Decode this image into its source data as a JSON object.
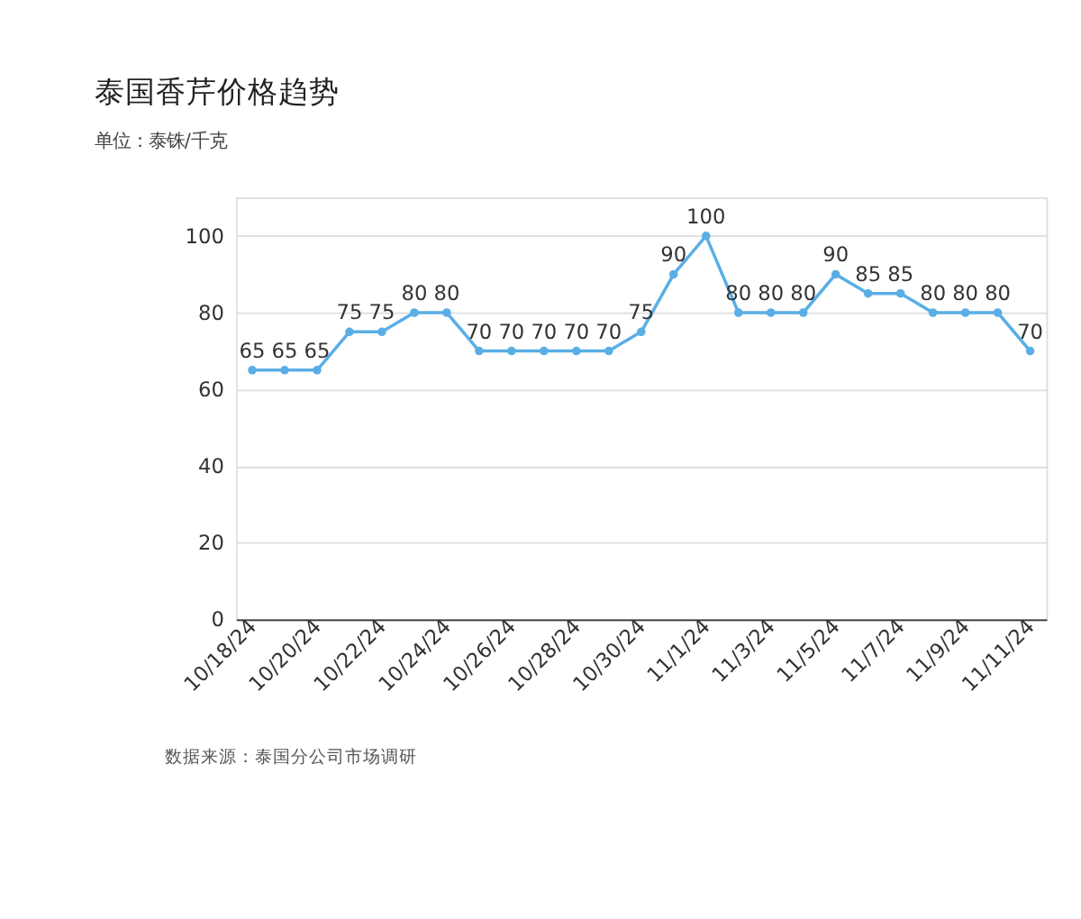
{
  "chart_data": {
    "type": "line",
    "title": "泰国香芹价格趋势",
    "subtitle": "单位：泰铢/千克",
    "categories": [
      "10/18/24",
      null,
      "10/20/24",
      null,
      "10/22/24",
      null,
      "10/24/24",
      null,
      "10/26/24",
      null,
      "10/28/24",
      null,
      "10/30/24",
      null,
      "11/1/24",
      null,
      "11/3/24",
      null,
      "11/5/24",
      null,
      "11/7/24",
      null,
      "11/9/24",
      null,
      "11/11/24"
    ],
    "series": [
      {
        "color": "#5aaee6",
        "values": [
          65,
          65,
          65,
          75,
          75,
          80,
          80,
          70,
          70,
          70,
          70,
          70,
          75,
          90,
          100,
          80,
          80,
          80,
          90,
          85,
          85,
          80,
          80,
          80,
          70
        ]
      }
    ],
    "ylim": [
      0,
      110
    ],
    "yticks": [
      0,
      20,
      40,
      60,
      80,
      100
    ],
    "grid": "y",
    "marker": "circle",
    "line_style": "solid",
    "data_labels": true,
    "annotations": [
      "数据来源：泰国分公司市场调研"
    ]
  }
}
